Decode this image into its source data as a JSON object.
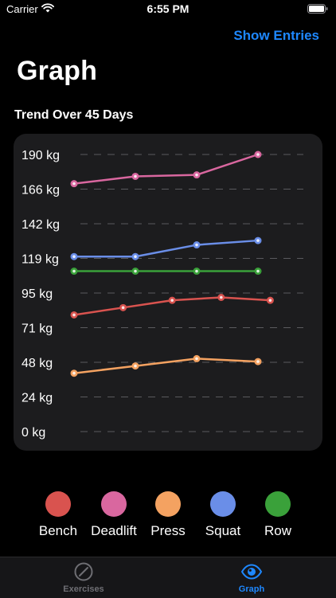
{
  "status_bar": {
    "carrier": "Carrier",
    "time": "6:55 PM",
    "wifi_icon": "wifi-icon",
    "battery_icon": "battery-icon"
  },
  "header": {
    "action_label": "Show Entries",
    "title": "Graph",
    "section_title": "Trend Over 45 Days"
  },
  "colors": {
    "accent": "#1e88ff",
    "card": "#1c1c1e",
    "bench": "#d9534f",
    "deadlift": "#d9679f",
    "press": "#f4a261",
    "squat": "#6a8ee8",
    "row": "#3aa13a"
  },
  "chart_data": {
    "type": "line",
    "y_tick_labels": [
      "190 kg",
      "166 kg",
      "142 kg",
      "119 kg",
      "95 kg",
      "71 kg",
      "48 kg",
      "24 kg",
      "0 kg"
    ],
    "ylim": [
      0,
      190
    ],
    "grid": "dashed horizontal",
    "series": [
      {
        "name": "Deadlift",
        "color": "#d9679f",
        "points": [
          [
            0,
            170
          ],
          [
            1,
            175
          ],
          [
            2,
            176
          ],
          [
            3,
            190
          ]
        ]
      },
      {
        "name": "Squat",
        "color": "#6a8ee8",
        "points": [
          [
            0,
            120
          ],
          [
            1,
            120
          ],
          [
            2,
            128
          ],
          [
            3,
            131
          ]
        ]
      },
      {
        "name": "Row",
        "color": "#3aa13a",
        "points": [
          [
            0,
            110
          ],
          [
            1,
            110
          ],
          [
            2,
            110
          ],
          [
            3,
            110
          ]
        ]
      },
      {
        "name": "Bench",
        "color": "#d9534f",
        "points": [
          [
            0,
            80
          ],
          [
            0.8,
            85
          ],
          [
            1.6,
            90
          ],
          [
            2.4,
            92
          ],
          [
            3.2,
            90
          ]
        ]
      },
      {
        "name": "Press",
        "color": "#f4a261",
        "points": [
          [
            0,
            40
          ],
          [
            1,
            45
          ],
          [
            2,
            50
          ],
          [
            3,
            48
          ]
        ]
      }
    ]
  },
  "legend": [
    {
      "label": "Bench",
      "color": "#d9534f"
    },
    {
      "label": "Deadlift",
      "color": "#d9679f"
    },
    {
      "label": "Press",
      "color": "#f4a261"
    },
    {
      "label": "Squat",
      "color": "#6a8ee8"
    },
    {
      "label": "Row",
      "color": "#3aa13a"
    }
  ],
  "tabs": [
    {
      "label": "Exercises",
      "icon": "slash-circle-icon",
      "active": false
    },
    {
      "label": "Graph",
      "icon": "eye-icon",
      "active": true
    }
  ]
}
